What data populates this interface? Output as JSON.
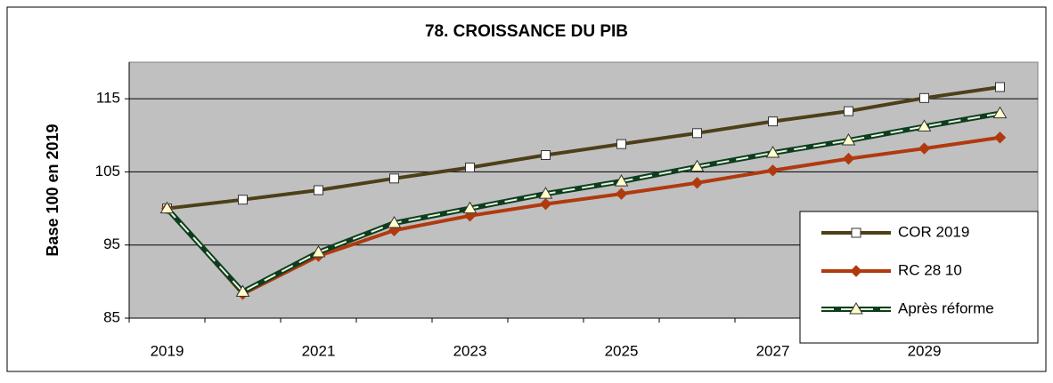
{
  "chart_data": {
    "type": "line",
    "title": "78. CROISSANCE DU PIB",
    "y_label": "Base 100 en 2019",
    "categories": [
      "2019",
      null,
      "2021",
      null,
      "2023",
      null,
      "2025",
      null,
      "2027",
      null,
      "2029",
      null
    ],
    "series": [
      {
        "name": "COR 2019",
        "color": "#4d4019",
        "marker": "square",
        "values": [
          100,
          101.2,
          102.5,
          104.1,
          105.6,
          107.3,
          108.8,
          110.3,
          111.9,
          113.3,
          115.1,
          116.6
        ]
      },
      {
        "name": "RC 28 10",
        "color": "#b03a0f",
        "marker": "diamond",
        "values": [
          100,
          88.3,
          93.5,
          97,
          99,
          100.6,
          102,
          103.5,
          105.2,
          106.8,
          108.2,
          109.7
        ]
      },
      {
        "name": "Après réforme",
        "color": "#0d3d1e",
        "marker": "triangle",
        "values": [
          100,
          88.6,
          94,
          98,
          100,
          102,
          103.7,
          105.7,
          107.6,
          109.3,
          111.2,
          113
        ]
      }
    ],
    "ylim": [
      85,
      120
    ],
    "yticks": [
      85,
      95,
      105,
      115
    ],
    "grid": true,
    "legend": "lower right"
  }
}
